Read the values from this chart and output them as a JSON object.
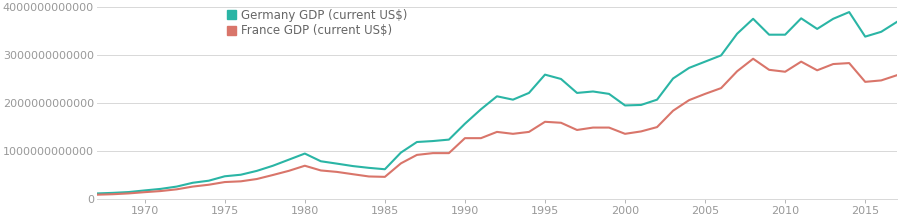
{
  "germany_gdp": {
    "years": [
      1967,
      1968,
      1969,
      1970,
      1971,
      1972,
      1973,
      1974,
      1975,
      1976,
      1977,
      1978,
      1979,
      1980,
      1981,
      1982,
      1983,
      1984,
      1985,
      1986,
      1987,
      1988,
      1989,
      1990,
      1991,
      1992,
      1993,
      1994,
      1995,
      1996,
      1997,
      1998,
      1999,
      2000,
      2001,
      2002,
      2003,
      2004,
      2005,
      2006,
      2007,
      2008,
      2009,
      2010,
      2011,
      2012,
      2013,
      2014,
      2015,
      2016,
      2017
    ],
    "values": [
      121000000000.0,
      133000000000.0,
      150000000000.0,
      184000000000.0,
      216000000000.0,
      264000000000.0,
      343000000000.0,
      386000000000.0,
      478000000000.0,
      510000000000.0,
      590000000000.0,
      696000000000.0,
      823000000000.0,
      950000000000.0,
      790000000000.0,
      741000000000.0,
      690000000000.0,
      653000000000.0,
      624000000000.0,
      970000000000.0,
      1190000000000.0,
      1210000000000.0,
      1240000000000.0,
      1570000000000.0,
      1870000000000.0,
      2140000000000.0,
      2070000000000.0,
      2210000000000.0,
      2590000000000.0,
      2500000000000.0,
      2210000000000.0,
      2240000000000.0,
      2190000000000.0,
      1950000000000.0,
      1960000000000.0,
      2070000000000.0,
      2510000000000.0,
      2730000000000.0,
      2860000000000.0,
      2990000000000.0,
      3440000000000.0,
      3750000000000.0,
      3420000000000.0,
      3420000000000.0,
      3760000000000.0,
      3540000000000.0,
      3750000000000.0,
      3890000000000.0,
      3380000000000.0,
      3480000000000.0,
      3690000000000.0
    ]
  },
  "france_gdp": {
    "years": [
      1967,
      1968,
      1969,
      1970,
      1971,
      1972,
      1973,
      1974,
      1975,
      1976,
      1977,
      1978,
      1979,
      1980,
      1981,
      1982,
      1983,
      1984,
      1985,
      1986,
      1987,
      1988,
      1989,
      1990,
      1991,
      1992,
      1993,
      1994,
      1995,
      1996,
      1997,
      1998,
      1999,
      2000,
      2001,
      2002,
      2003,
      2004,
      2005,
      2006,
      2007,
      2008,
      2009,
      2010,
      2011,
      2012,
      2013,
      2014,
      2015,
      2016,
      2017
    ],
    "values": [
      95000000000.0,
      105000000000.0,
      122000000000.0,
      148000000000.0,
      171000000000.0,
      207000000000.0,
      264000000000.0,
      302000000000.0,
      358000000000.0,
      373000000000.0,
      421000000000.0,
      504000000000.0,
      591000000000.0,
      697000000000.0,
      599000000000.0,
      569000000000.0,
      521000000000.0,
      474000000000.0,
      466000000000.0,
      746000000000.0,
      922000000000.0,
      959000000000.0,
      959000000000.0,
      1270000000000.0,
      1270000000000.0,
      1400000000000.0,
      1360000000000.0,
      1400000000000.0,
      1610000000000.0,
      1590000000000.0,
      1440000000000.0,
      1490000000000.0,
      1490000000000.0,
      1360000000000.0,
      1410000000000.0,
      1500000000000.0,
      1840000000000.0,
      2060000000000.0,
      2190000000000.0,
      2310000000000.0,
      2660000000000.0,
      2920000000000.0,
      2690000000000.0,
      2650000000000.0,
      2860000000000.0,
      2680000000000.0,
      2810000000000.0,
      2830000000000.0,
      2440000000000.0,
      2470000000000.0,
      2580000000000.0
    ]
  },
  "germany_color": "#2ab5a5",
  "france_color": "#d9756a",
  "germany_label": "Germany GDP (current US$)",
  "france_label": "France GDP (current US$)",
  "ylim": [
    0,
    4000000000000
  ],
  "xlim": [
    1967,
    2017
  ],
  "background_color": "#ffffff",
  "grid_color": "#d8d8d8",
  "line_width": 1.5,
  "legend_fontsize": 8.5,
  "ytick_fontsize": 8,
  "xtick_fontsize": 8,
  "ytick_labels": [
    "0",
    "1000000000000",
    "2000000000000",
    "3000000000000",
    "4000000000000"
  ],
  "ytick_values": [
    0,
    1000000000000,
    2000000000000,
    3000000000000,
    4000000000000
  ],
  "xtick_values": [
    1970,
    1975,
    1980,
    1985,
    1990,
    1995,
    2000,
    2005,
    2010,
    2015
  ]
}
